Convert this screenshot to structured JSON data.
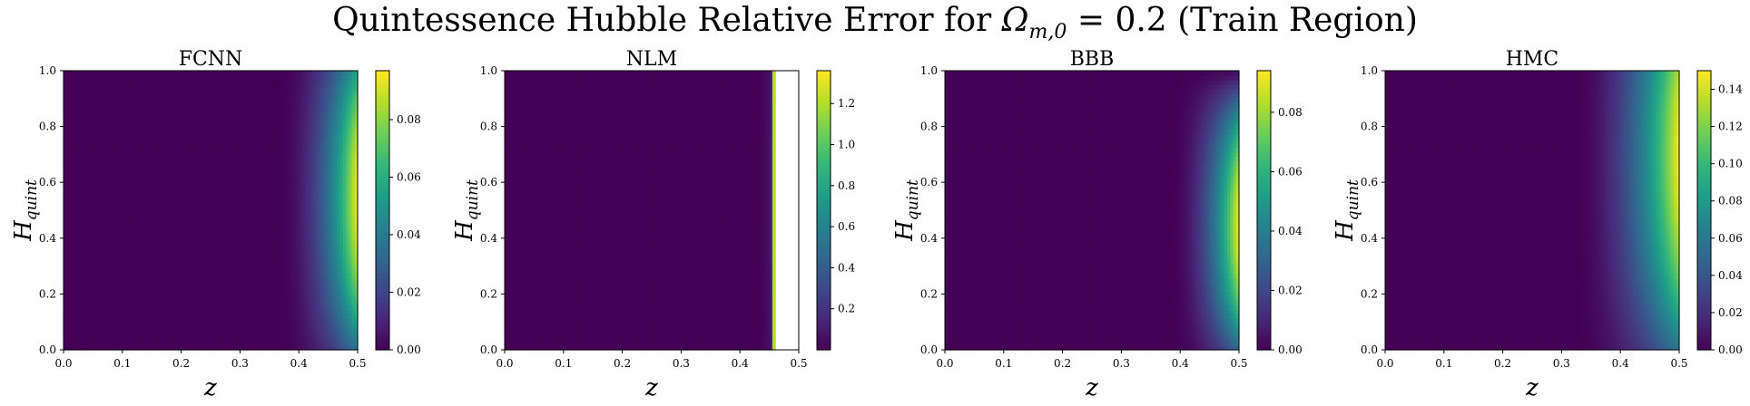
{
  "suptitle": {
    "prefix": "Quintessence Hubble Relative Error for ",
    "omega": "Ω",
    "omega_sub": "m,0",
    "suffix": " = 0.2 (Train Region)"
  },
  "chart_data": [
    {
      "type": "heatmap",
      "title": "FCNN",
      "xlabel": "z",
      "ylabel": "H",
      "ylabel_sub": "quint",
      "xlim": [
        0.0,
        0.5
      ],
      "ylim": [
        0.0,
        1.0
      ],
      "xticks": [
        "0.0",
        "0.1",
        "0.2",
        "0.3",
        "0.4",
        "0.5"
      ],
      "yticks": [
        "0.0",
        "0.2",
        "0.4",
        "0.6",
        "0.8",
        "1.0"
      ],
      "colorbar": {
        "min": 0.0,
        "max": 0.097,
        "ticks": [
          "0.00",
          "0.02",
          "0.04",
          "0.06",
          "0.08"
        ],
        "tick_values": [
          0.0,
          0.02,
          0.04,
          0.06,
          0.08
        ]
      },
      "field": {
        "max": 0.097,
        "onset_z": 0.36,
        "peak_H": 0.55,
        "spread_H": 0.7,
        "power": 2.2
      }
    },
    {
      "type": "heatmap",
      "title": "NLM",
      "xlabel": "z",
      "ylabel": "H",
      "ylabel_sub": "quint",
      "xlim": [
        0.0,
        0.5
      ],
      "ylim": [
        0.0,
        1.0
      ],
      "xticks": [
        "0.0",
        "0.1",
        "0.2",
        "0.3",
        "0.4",
        "0.5"
      ],
      "yticks": [
        "0.0",
        "0.2",
        "0.4",
        "0.6",
        "0.8",
        "1.0"
      ],
      "colorbar": {
        "min": 0.0,
        "max": 1.36,
        "ticks": [
          "0.2",
          "0.4",
          "0.6",
          "0.8",
          "1.0",
          "1.2"
        ],
        "tick_values": [
          0.2,
          0.4,
          0.6,
          0.8,
          1.0,
          1.2
        ]
      },
      "field": {
        "max": 1.36,
        "onset_z": 0.42,
        "peak_H": 0.55,
        "spread_H": 1.0,
        "power": 3.0,
        "valid_until_z": 0.462,
        "blowup_value": 1.2
      }
    },
    {
      "type": "heatmap",
      "title": "BBB",
      "xlabel": "z",
      "ylabel": "H",
      "ylabel_sub": "quint",
      "xlim": [
        0.0,
        0.5
      ],
      "ylim": [
        0.0,
        1.0
      ],
      "xticks": [
        "0.0",
        "0.1",
        "0.2",
        "0.3",
        "0.4",
        "0.5"
      ],
      "yticks": [
        "0.0",
        "0.2",
        "0.4",
        "0.6",
        "0.8",
        "1.0"
      ],
      "colorbar": {
        "min": 0.0,
        "max": 0.094,
        "ticks": [
          "0.00",
          "0.02",
          "0.04",
          "0.06",
          "0.08"
        ],
        "tick_values": [
          0.0,
          0.02,
          0.04,
          0.06,
          0.08
        ]
      },
      "field": {
        "max": 0.094,
        "onset_z": 0.38,
        "peak_H": 0.45,
        "spread_H": 0.55,
        "power": 2.2
      }
    },
    {
      "type": "heatmap",
      "title": "HMC",
      "xlabel": "z",
      "ylabel": "H",
      "ylabel_sub": "quint",
      "xlim": [
        0.0,
        0.5
      ],
      "ylim": [
        0.0,
        1.0
      ],
      "xticks": [
        "0.0",
        "0.1",
        "0.2",
        "0.3",
        "0.4",
        "0.5"
      ],
      "yticks": [
        "0.0",
        "0.2",
        "0.4",
        "0.6",
        "0.8",
        "1.0"
      ],
      "colorbar": {
        "min": 0.0,
        "max": 0.15,
        "ticks": [
          "0.00",
          "0.02",
          "0.04",
          "0.06",
          "0.08",
          "0.10",
          "0.12",
          "0.14"
        ],
        "tick_values": [
          0.0,
          0.02,
          0.04,
          0.06,
          0.08,
          0.1,
          0.12,
          0.14
        ]
      },
      "field": {
        "max": 0.15,
        "onset_z": 0.32,
        "peak_H": 0.7,
        "spread_H": 0.9,
        "power": 2.0
      }
    }
  ],
  "colormap": [
    "#440154",
    "#482878",
    "#3e4989",
    "#31688e",
    "#26828e",
    "#1f9e89",
    "#35b779",
    "#6ece58",
    "#b5de2b",
    "#fde725"
  ]
}
